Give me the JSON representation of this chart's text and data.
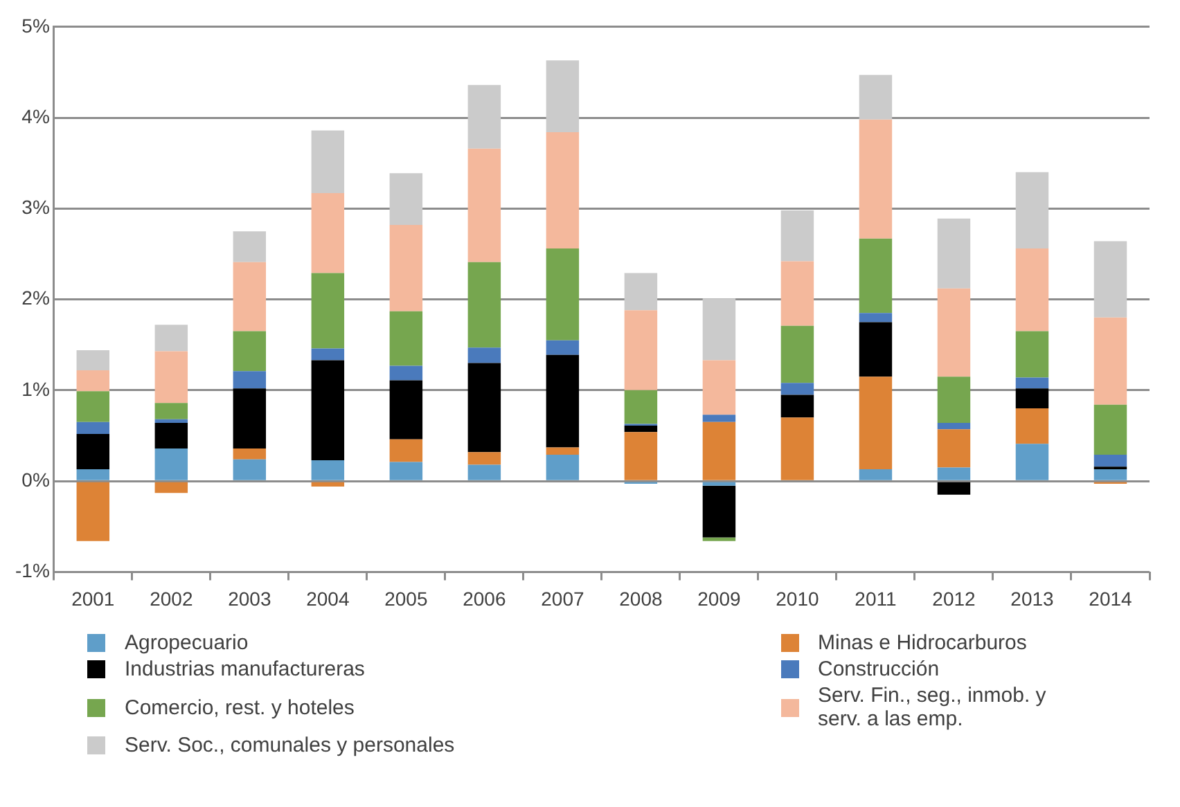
{
  "chart_data": {
    "type": "bar",
    "stacked": true,
    "categories": [
      "2001",
      "2002",
      "2003",
      "2004",
      "2005",
      "2006",
      "2007",
      "2008",
      "2009",
      "2010",
      "2011",
      "2012",
      "2013",
      "2014"
    ],
    "series": [
      {
        "name": "Agropecuario",
        "color": "#5f9ec9",
        "values": [
          0.13,
          0.36,
          0.24,
          0.23,
          0.21,
          0.18,
          0.29,
          -0.03,
          -0.05,
          null,
          0.13,
          0.15,
          0.41,
          0.13
        ]
      },
      {
        "name": "Minas e Hidrocarburos",
        "color": "#dd8336",
        "values": [
          -0.66,
          -0.13,
          0.12,
          -0.06,
          0.25,
          0.14,
          0.08,
          0.54,
          0.65,
          0.7,
          1.02,
          0.42,
          0.39,
          -0.03
        ]
      },
      {
        "name": "Industrias manufactureras",
        "color": "#000000",
        "values": [
          0.39,
          0.28,
          0.66,
          1.1,
          0.65,
          0.98,
          1.02,
          0.07,
          -0.57,
          0.25,
          0.6,
          -0.15,
          0.22,
          0.03
        ]
      },
      {
        "name": "Construcción",
        "color": "#4a7abc",
        "values": [
          0.13,
          0.04,
          0.19,
          0.13,
          0.16,
          0.17,
          0.16,
          0.02,
          0.08,
          0.13,
          0.1,
          0.07,
          0.12,
          0.13
        ]
      },
      {
        "name": "Comercio, rest. y hoteles",
        "color": "#76a64f",
        "values": [
          0.34,
          0.18,
          0.44,
          0.83,
          0.6,
          0.94,
          1.01,
          0.37,
          -0.04,
          0.63,
          0.82,
          0.51,
          0.51,
          0.55
        ]
      },
      {
        "name": "Serv. Fin., seg., inmob. y serv. a las emp.",
        "color": "#f4b89c",
        "values": [
          0.23,
          0.57,
          0.76,
          0.88,
          0.95,
          1.25,
          1.28,
          0.88,
          0.6,
          0.71,
          1.31,
          0.97,
          0.91,
          0.96
        ]
      },
      {
        "name": "Serv. Soc., comunales y personales",
        "color": "#cbcbcb",
        "values": [
          0.22,
          0.29,
          0.34,
          0.69,
          0.57,
          0.7,
          0.79,
          0.41,
          0.68,
          0.56,
          0.49,
          0.77,
          0.84,
          0.84
        ]
      }
    ],
    "ylim": [
      -1,
      5
    ],
    "yticks": [
      {
        "value": -1,
        "label": "-1%"
      },
      {
        "value": 0,
        "label": "0%"
      },
      {
        "value": 1,
        "label": "1%"
      },
      {
        "value": 2,
        "label": "2%"
      },
      {
        "value": 3,
        "label": "3%"
      },
      {
        "value": 4,
        "label": "4%"
      },
      {
        "value": 5,
        "label": "5%"
      }
    ],
    "grid": "y",
    "legend": "bottom"
  }
}
